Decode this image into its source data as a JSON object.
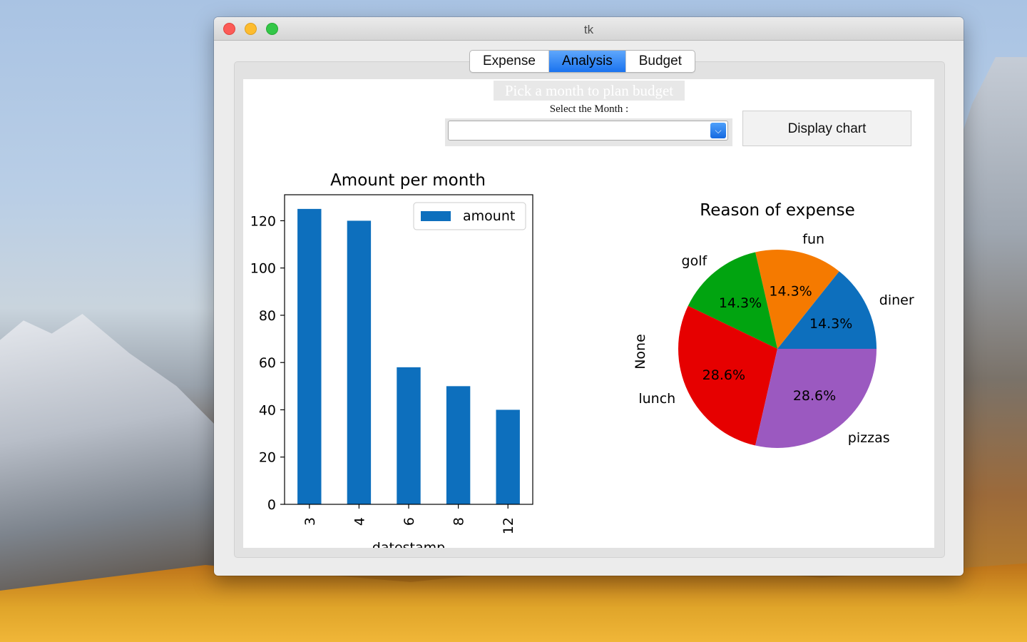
{
  "window": {
    "title": "tk"
  },
  "tabs": [
    {
      "label": "Expense",
      "active": false
    },
    {
      "label": "Analysis",
      "active": true
    },
    {
      "label": "Budget",
      "active": false
    }
  ],
  "form": {
    "heading": "Pick a month to plan budget",
    "select_label": "Select the Month :",
    "select_value": "",
    "display_button": "Display chart"
  },
  "colors": {
    "bar": "#0d6fbd",
    "pie": [
      "#0d6fbd",
      "#f57a00",
      "#01a410",
      "#e60000",
      "#9b59c0"
    ]
  },
  "chart_data": [
    {
      "type": "bar",
      "title": "Amount per month",
      "categories": [
        "3",
        "4",
        "6",
        "8",
        "12"
      ],
      "series": [
        {
          "name": "amount",
          "values": [
            125,
            120,
            58,
            50,
            40
          ]
        }
      ],
      "xlabel": "datestamp",
      "ylabel": "",
      "ylim": [
        0,
        131
      ],
      "yticks": [
        0,
        20,
        40,
        60,
        80,
        100,
        120
      ],
      "legend": "top-right",
      "grid": false
    },
    {
      "type": "pie",
      "title": "Reason of expense",
      "ylabel": "None",
      "labels": [
        "diner",
        "fun",
        "golf",
        "lunch",
        "pizzas"
      ],
      "values": [
        14.3,
        14.3,
        14.3,
        28.6,
        28.6
      ],
      "pct_labels": [
        "14.3%",
        "14.3%",
        "14.3%",
        "28.6%",
        "28.6%"
      ]
    }
  ]
}
